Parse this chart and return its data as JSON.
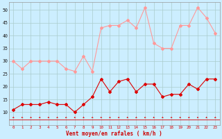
{
  "x": [
    0,
    1,
    2,
    3,
    4,
    5,
    6,
    7,
    8,
    9,
    10,
    11,
    12,
    13,
    14,
    15,
    16,
    17,
    18,
    19,
    20,
    21,
    22,
    23
  ],
  "vent_moyen": [
    11,
    13,
    13,
    13,
    14,
    13,
    13,
    10,
    13,
    16,
    23,
    18,
    22,
    23,
    18,
    21,
    21,
    16,
    17,
    17,
    21,
    19,
    23,
    23
  ],
  "rafales": [
    30,
    27,
    30,
    30,
    30,
    30,
    27,
    26,
    32,
    26,
    43,
    44,
    44,
    46,
    43,
    51,
    37,
    35,
    35,
    44,
    44,
    51,
    47,
    41
  ],
  "moyen_color": "#dd0000",
  "rafales_color": "#ff9999",
  "bg_color": "#cceeff",
  "grid_color": "#aacccc",
  "xlabel": "Vent moyen/en rafales ( km/h )",
  "xlabel_color": "#cc0000",
  "ylabel_ticks": [
    10,
    15,
    20,
    25,
    30,
    35,
    40,
    45,
    50
  ],
  "xlim": [
    -0.5,
    23.5
  ],
  "ylim": [
    5,
    53
  ]
}
